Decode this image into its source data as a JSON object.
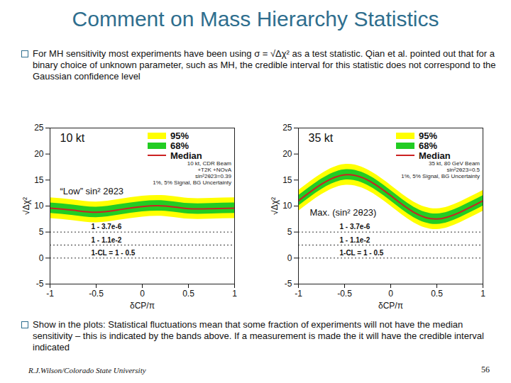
{
  "slide": {
    "title": "Comment on Mass Hierarchy Statistics",
    "bullets": [
      "For MH sensitivity most experiments have been using σ = √Δχ² as a test statistic. Qian et al. pointed out that for a binary choice of unknown parameter, such as MH, the credible interval for this statistic does not correspond to the Gaussian confidence level",
      "Show in the plots: Statistical fluctuations mean that some fraction of experiments will not have the median sensitivity – this is indicated by the bands above. If a measurement is made the it will have the credible interval indicated"
    ],
    "footer": "R.J.Wilson/Colorado State University",
    "page": "56"
  },
  "chart_data": [
    {
      "type": "line",
      "title": "10 kt",
      "annotation": "“Low” sin² 2θ23",
      "xlabel": "δCP/π",
      "ylabel": "√Δχ²",
      "x": [
        -1,
        -0.75,
        -0.5,
        -0.25,
        0,
        0.25,
        0.5,
        0.75,
        1
      ],
      "xlim": [
        -1,
        1
      ],
      "xticks": [
        -1,
        -0.5,
        0,
        0.5,
        1
      ],
      "ylim": [
        -5,
        25
      ],
      "yticks": [
        -5,
        0,
        5,
        10,
        15,
        20,
        25
      ],
      "bands": [
        {
          "name": "95%",
          "color": "#ffff00",
          "lower": [
            7.6,
            7.2,
            6.8,
            7.3,
            7.9,
            8.0,
            7.5,
            7.5,
            7.6
          ],
          "upper": [
            11.6,
            11.2,
            10.8,
            11.3,
            11.9,
            12.0,
            11.5,
            11.5,
            11.6
          ]
        },
        {
          "name": "68%",
          "color": "#22cc22",
          "lower": [
            8.6,
            8.2,
            7.8,
            8.3,
            8.9,
            9.0,
            8.5,
            8.5,
            8.6
          ],
          "upper": [
            10.6,
            10.2,
            9.8,
            10.3,
            10.9,
            11.0,
            10.5,
            10.5,
            10.6
          ]
        }
      ],
      "series": [
        {
          "name": "Median",
          "color": "#cc2222",
          "values": [
            9.6,
            9.2,
            8.8,
            9.3,
            9.9,
            10.0,
            9.5,
            9.5,
            9.6
          ]
        }
      ],
      "reference_lines": [
        {
          "value": 5,
          "label": "1 - 3.7e-6"
        },
        {
          "value": 2.5,
          "label": "1 - 1.1e-2"
        },
        {
          "value": 0,
          "label": "1-CL = 1 - 0.5"
        }
      ],
      "legend": "top-right",
      "legend_notes": [
        "10 kt, CDR Beam",
        "+T2K +NOvA",
        "sin²2θ23=0.39",
        "1%, 5% Signal, BG Uncertainty"
      ]
    },
    {
      "type": "line",
      "title": "35 kt",
      "annotation": "Max. (sin² 2θ23)",
      "xlabel": "δCP/π",
      "ylabel": "√Δχ²",
      "x": [
        -1,
        -0.75,
        -0.5,
        -0.25,
        0,
        0.25,
        0.5,
        0.75,
        1
      ],
      "xlim": [
        -1,
        1
      ],
      "xticks": [
        -1,
        -0.5,
        0,
        0.5,
        1
      ],
      "ylim": [
        -5,
        25
      ],
      "yticks": [
        -5,
        0,
        5,
        10,
        15,
        20,
        25
      ],
      "bands": [
        {
          "name": "95%",
          "color": "#ffff00",
          "lower": [
            9.0,
            12.2,
            14.0,
            13.0,
            10.0,
            6.8,
            5.5,
            6.8,
            9.0
          ],
          "upper": [
            13.0,
            16.2,
            18.0,
            17.0,
            14.0,
            10.8,
            9.5,
            10.8,
            13.0
          ]
        },
        {
          "name": "68%",
          "color": "#22cc22",
          "lower": [
            10.0,
            13.2,
            15.0,
            14.0,
            11.0,
            7.8,
            6.5,
            7.8,
            10.0
          ],
          "upper": [
            12.0,
            15.2,
            17.0,
            16.0,
            13.0,
            9.8,
            8.5,
            9.8,
            12.0
          ]
        }
      ],
      "series": [
        {
          "name": "Median",
          "color": "#cc2222",
          "values": [
            11.0,
            14.2,
            16.0,
            15.0,
            12.0,
            8.8,
            7.5,
            8.8,
            11.0
          ]
        }
      ],
      "reference_lines": [
        {
          "value": 5,
          "label": "1 - 3.7e-6"
        },
        {
          "value": 2.5,
          "label": "1 - 1.1e-2"
        },
        {
          "value": 0,
          "label": "1-CL = 1 - 0.5"
        }
      ],
      "legend": "top-right",
      "legend_notes": [
        "35 kt, 80 GeV Beam",
        "sin²2θ23=0.5",
        "1%, 5% Signal, BG Uncertainty"
      ]
    }
  ]
}
